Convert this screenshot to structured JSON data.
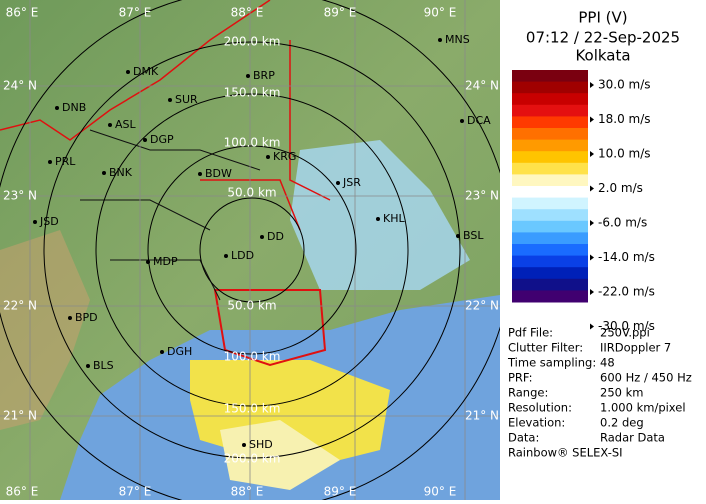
{
  "panel": {
    "title": "PPI (V)",
    "datetime": "07:12 / 22-Sep-2025",
    "station": "Kolkata",
    "legend": [
      "30.0 m/s",
      "18.0 m/s",
      "10.0 m/s",
      "2.0 m/s",
      "-6.0 m/s",
      "-14.0 m/s",
      "-22.0 m/s",
      "-30.0 m/s"
    ],
    "info": [
      [
        "Pdf File:",
        "250V.ppi"
      ],
      [
        "Clutter Filter:",
        "IIRDoppler 7"
      ],
      [
        "Time sampling:",
        "48"
      ],
      [
        "PRF:",
        "600 Hz / 450 Hz"
      ],
      [
        "Range:",
        "250 km"
      ],
      [
        "Resolution:",
        "1.000 km/pixel"
      ],
      [
        "Elevation:",
        "0.2 deg"
      ],
      [
        "Data:",
        "Radar Data"
      ]
    ],
    "footer": "Rainbow® SELEX-SI"
  },
  "map": {
    "lon_labels": [
      "86° E",
      "87° E",
      "88° E",
      "89° E",
      "90° E"
    ],
    "lat_labels": [
      "24° N",
      "23° N",
      "22° N",
      "21° N"
    ],
    "ring_labels": [
      "50.0 km",
      "100.0 km",
      "150.0 km",
      "200.0 km"
    ],
    "cities": [
      "MNS",
      "DMK",
      "BRP",
      "SUR",
      "DNB",
      "ASL",
      "DGP",
      "KRG",
      "DCA",
      "PRL",
      "BNK",
      "BDW",
      "JSR",
      "JSD",
      "KHL",
      "BSL",
      "DD",
      "LDD",
      "MDP",
      "BPD",
      "DGH",
      "BLS",
      "SHD"
    ]
  }
}
